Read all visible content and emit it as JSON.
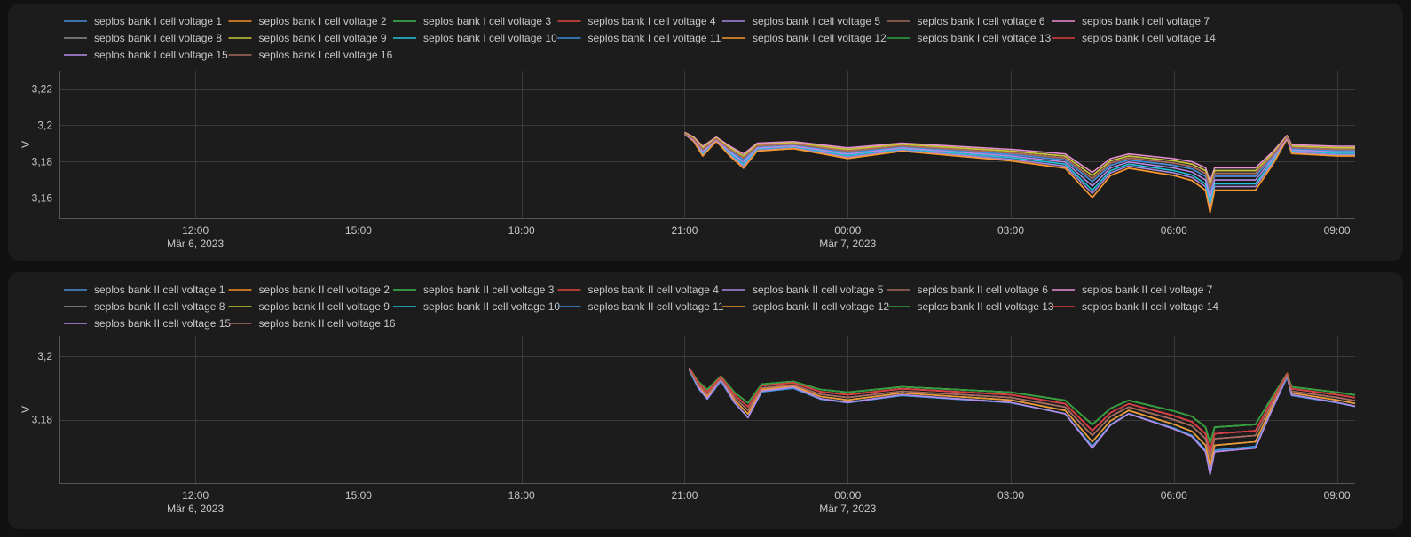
{
  "chart_data": [
    {
      "type": "line",
      "title": "",
      "xlabel": "",
      "ylabel": "V",
      "ylim": [
        3.149,
        3.23
      ],
      "yticks": [
        3.16,
        3.18,
        3.2,
        3.22
      ],
      "ytick_labels": [
        "3,16",
        "3,18",
        "3,2",
        "3,22"
      ],
      "xlim": [
        "2023-03-06 09:30",
        "2023-03-07 09:20"
      ],
      "xticks": [
        {
          "t": "2023-03-06 12:00",
          "label": "12:00",
          "sub": "Mär 6, 2023"
        },
        {
          "t": "2023-03-06 15:00",
          "label": "15:00",
          "sub": ""
        },
        {
          "t": "2023-03-06 18:00",
          "label": "18:00",
          "sub": ""
        },
        {
          "t": "2023-03-06 21:00",
          "label": "21:00",
          "sub": ""
        },
        {
          "t": "2023-03-07 00:00",
          "label": "00:00",
          "sub": "Mär 7, 2023"
        },
        {
          "t": "2023-03-07 03:00",
          "label": "03:00",
          "sub": ""
        },
        {
          "t": "2023-03-07 06:00",
          "label": "06:00",
          "sub": ""
        },
        {
          "t": "2023-03-07 09:00",
          "label": "09:00",
          "sub": ""
        }
      ],
      "grid": true,
      "legend_position": "top",
      "base_curve": [
        [
          "2023-03-06 21:00",
          3.195
        ],
        [
          "2023-03-06 21:10",
          3.192
        ],
        [
          "2023-03-06 21:20",
          3.186
        ],
        [
          "2023-03-06 21:35",
          3.192
        ],
        [
          "2023-03-06 21:50",
          3.186
        ],
        [
          "2023-03-06 22:05",
          3.181
        ],
        [
          "2023-03-06 22:20",
          3.188
        ],
        [
          "2023-03-06 23:00",
          3.189
        ],
        [
          "2023-03-06 23:30",
          3.187
        ],
        [
          "2023-03-07 00:00",
          3.185
        ],
        [
          "2023-03-07 01:00",
          3.188
        ],
        [
          "2023-03-07 02:00",
          3.186
        ],
        [
          "2023-03-07 03:00",
          3.184
        ],
        [
          "2023-03-07 04:00",
          3.181
        ],
        [
          "2023-03-07 04:30",
          3.169
        ],
        [
          "2023-03-07 04:50",
          3.178
        ],
        [
          "2023-03-07 05:10",
          3.181
        ],
        [
          "2023-03-07 06:00",
          3.178
        ],
        [
          "2023-03-07 06:20",
          3.176
        ],
        [
          "2023-03-07 06:35",
          3.172
        ],
        [
          "2023-03-07 06:40",
          3.163
        ],
        [
          "2023-03-07 06:45",
          3.172
        ],
        [
          "2023-03-07 07:30",
          3.172
        ],
        [
          "2023-03-07 07:50",
          3.183
        ],
        [
          "2023-03-07 08:05",
          3.193
        ],
        [
          "2023-03-07 08:10",
          3.187
        ],
        [
          "2023-03-07 09:00",
          3.186
        ],
        [
          "2023-03-07 09:20",
          3.186
        ]
      ],
      "series": [
        {
          "name": "seplos bank I cell voltage 1",
          "color": "#4a8fd6",
          "offset": 0.0,
          "dip_scale": 1.0
        },
        {
          "name": "seplos bank I cell voltage 2",
          "color": "#f28e2b",
          "offset": -0.004,
          "dip_scale": 1.35
        },
        {
          "name": "seplos bank I cell voltage 3",
          "color": "#3fb950",
          "offset": 0.002,
          "dip_scale": 0.9
        },
        {
          "name": "seplos bank I cell voltage 4",
          "color": "#e0443e",
          "offset": 0.0,
          "dip_scale": 1.0
        },
        {
          "name": "seplos bank I cell voltage 5",
          "color": "#a887e0",
          "offset": -0.003,
          "dip_scale": 1.25
        },
        {
          "name": "seplos bank I cell voltage 6",
          "color": "#a0685c",
          "offset": 0.002,
          "dip_scale": 0.9
        },
        {
          "name": "seplos bank I cell voltage 7",
          "color": "#e88fd0",
          "offset": 0.003,
          "dip_scale": 0.85
        },
        {
          "name": "seplos bank I cell voltage 8",
          "color": "#8c8c8c",
          "offset": 0.001,
          "dip_scale": 0.95
        },
        {
          "name": "seplos bank I cell voltage 9",
          "color": "#c7c733",
          "offset": 0.002,
          "dip_scale": 0.9
        },
        {
          "name": "seplos bank I cell voltage 10",
          "color": "#20c4d6",
          "offset": -0.002,
          "dip_scale": 1.2
        },
        {
          "name": "seplos bank I cell voltage 11",
          "color": "#3a8fd6",
          "offset": 0.0,
          "dip_scale": 1.0
        },
        {
          "name": "seplos bank I cell voltage 12",
          "color": "#f5962e",
          "offset": -0.004,
          "dip_scale": 1.35
        },
        {
          "name": "seplos bank I cell voltage 13",
          "color": "#2ea043",
          "offset": 0.001,
          "dip_scale": 0.95
        },
        {
          "name": "seplos bank I cell voltage 14",
          "color": "#d93b3b",
          "offset": 0.001,
          "dip_scale": 0.95
        },
        {
          "name": "seplos bank I cell voltage 15",
          "color": "#b38be6",
          "offset": -0.001,
          "dip_scale": 1.1
        },
        {
          "name": "seplos bank I cell voltage 16",
          "color": "#a8695f",
          "offset": 0.001,
          "dip_scale": 0.95
        }
      ]
    },
    {
      "type": "line",
      "title": "",
      "xlabel": "",
      "ylabel": "V",
      "ylim": [
        3.16,
        3.2065
      ],
      "yticks": [
        3.18,
        3.2
      ],
      "ytick_labels": [
        "3,18",
        "3,2"
      ],
      "xlim": [
        "2023-03-06 09:30",
        "2023-03-07 09:20"
      ],
      "xticks": [
        {
          "t": "2023-03-06 12:00",
          "label": "12:00",
          "sub": "Mär 6, 2023"
        },
        {
          "t": "2023-03-06 15:00",
          "label": "15:00",
          "sub": ""
        },
        {
          "t": "2023-03-06 18:00",
          "label": "18:00",
          "sub": ""
        },
        {
          "t": "2023-03-06 21:00",
          "label": "21:00",
          "sub": ""
        },
        {
          "t": "2023-03-07 00:00",
          "label": "00:00",
          "sub": "Mär 7, 2023"
        },
        {
          "t": "2023-03-07 03:00",
          "label": "03:00",
          "sub": ""
        },
        {
          "t": "2023-03-07 06:00",
          "label": "06:00",
          "sub": ""
        },
        {
          "t": "2023-03-07 09:00",
          "label": "09:00",
          "sub": ""
        }
      ],
      "grid": true,
      "legend_position": "top",
      "base_curve": [
        [
          "2023-03-06 21:05",
          3.196
        ],
        [
          "2023-03-06 21:15",
          3.191
        ],
        [
          "2023-03-06 21:25",
          3.188
        ],
        [
          "2023-03-06 21:40",
          3.193
        ],
        [
          "2023-03-06 21:55",
          3.187
        ],
        [
          "2023-03-06 22:10",
          3.183
        ],
        [
          "2023-03-06 22:25",
          3.19
        ],
        [
          "2023-03-06 23:00",
          3.191
        ],
        [
          "2023-03-06 23:30",
          3.188
        ],
        [
          "2023-03-07 00:00",
          3.187
        ],
        [
          "2023-03-07 01:00",
          3.189
        ],
        [
          "2023-03-07 02:00",
          3.188
        ],
        [
          "2023-03-07 03:00",
          3.187
        ],
        [
          "2023-03-07 04:00",
          3.184
        ],
        [
          "2023-03-07 04:30",
          3.175
        ],
        [
          "2023-03-07 04:50",
          3.181
        ],
        [
          "2023-03-07 05:10",
          3.184
        ],
        [
          "2023-03-07 06:00",
          3.18
        ],
        [
          "2023-03-07 06:20",
          3.178
        ],
        [
          "2023-03-07 06:35",
          3.174
        ],
        [
          "2023-03-07 06:40",
          3.168
        ],
        [
          "2023-03-07 06:45",
          3.174
        ],
        [
          "2023-03-07 07:30",
          3.175
        ],
        [
          "2023-03-07 07:50",
          3.186
        ],
        [
          "2023-03-07 08:05",
          3.194
        ],
        [
          "2023-03-07 08:10",
          3.189
        ],
        [
          "2023-03-07 09:00",
          3.187
        ],
        [
          "2023-03-07 09:20",
          3.186
        ]
      ],
      "series": [
        {
          "name": "seplos bank II cell voltage 1",
          "color": "#4a8fd6",
          "offset": -0.002,
          "dip_scale": 1.15
        },
        {
          "name": "seplos bank II cell voltage 2",
          "color": "#f28e2b",
          "offset": -0.001,
          "dip_scale": 1.1
        },
        {
          "name": "seplos bank II cell voltage 3",
          "color": "#3fb950",
          "offset": 0.002,
          "dip_scale": 0.85
        },
        {
          "name": "seplos bank II cell voltage 4",
          "color": "#e0443e",
          "offset": 0.001,
          "dip_scale": 0.95
        },
        {
          "name": "seplos bank II cell voltage 5",
          "color": "#a887e0",
          "offset": -0.002,
          "dip_scale": 1.2
        },
        {
          "name": "seplos bank II cell voltage 6",
          "color": "#a0685c",
          "offset": 0.0,
          "dip_scale": 1.0
        },
        {
          "name": "seplos bank II cell voltage 7",
          "color": "#e88fd0",
          "offset": 0.001,
          "dip_scale": 0.95
        },
        {
          "name": "seplos bank II cell voltage 8",
          "color": "#8c8c8c",
          "offset": 0.0,
          "dip_scale": 1.0
        },
        {
          "name": "seplos bank II cell voltage 9",
          "color": "#c7c733",
          "offset": 0.002,
          "dip_scale": 0.85
        },
        {
          "name": "seplos bank II cell voltage 10",
          "color": "#20c4d6",
          "offset": -0.001,
          "dip_scale": 1.1
        },
        {
          "name": "seplos bank II cell voltage 11",
          "color": "#3a8fd6",
          "offset": -0.002,
          "dip_scale": 1.15
        },
        {
          "name": "seplos bank II cell voltage 12",
          "color": "#f5962e",
          "offset": -0.001,
          "dip_scale": 1.1
        },
        {
          "name": "seplos bank II cell voltage 13",
          "color": "#2ea043",
          "offset": 0.002,
          "dip_scale": 0.85
        },
        {
          "name": "seplos bank II cell voltage 14",
          "color": "#d93b3b",
          "offset": 0.001,
          "dip_scale": 0.95
        },
        {
          "name": "seplos bank II cell voltage 15",
          "color": "#b38be6",
          "offset": -0.002,
          "dip_scale": 1.2
        },
        {
          "name": "seplos bank II cell voltage 16",
          "color": "#a8695f",
          "offset": 0.0,
          "dip_scale": 1.0
        }
      ]
    }
  ]
}
